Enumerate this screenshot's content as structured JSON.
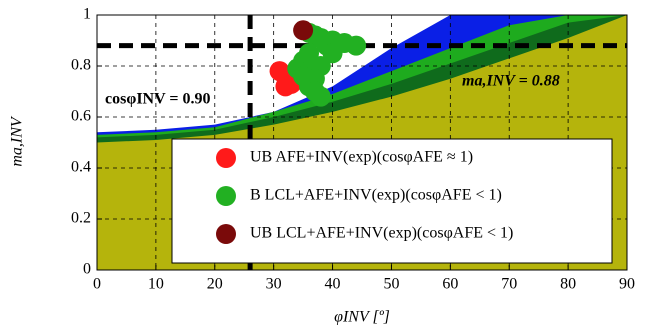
{
  "chart_data": {
    "type": "area",
    "x_label": "φINV [º]",
    "y_label": "ma,INV",
    "x": [
      0,
      10,
      20,
      30,
      40,
      50,
      60,
      70,
      80,
      90
    ],
    "areas": [
      {
        "color": "#0a1fe6",
        "values": [
          0.54,
          0.55,
          0.57,
          0.62,
          0.72,
          0.87,
          1.0,
          1.0,
          1.0,
          1.0
        ]
      },
      {
        "color": "#1eab1e",
        "values": [
          0.53,
          0.54,
          0.56,
          0.62,
          0.69,
          0.78,
          0.87,
          0.96,
          1.0,
          1.0
        ]
      },
      {
        "color": "#0f6b1c",
        "values": [
          0.52,
          0.53,
          0.55,
          0.6,
          0.66,
          0.73,
          0.81,
          0.89,
          0.97,
          1.0
        ]
      },
      {
        "color": "#b5b40c",
        "values": [
          0.5,
          0.51,
          0.53,
          0.57,
          0.62,
          0.68,
          0.75,
          0.83,
          0.91,
          1.0
        ]
      }
    ],
    "series": [
      {
        "name": "UB AFE+INV(exp)(cosφAFE ≈ 1)",
        "color": "#ff1a1a",
        "x": [
          31,
          32,
          33,
          32
        ],
        "y": [
          0.78,
          0.76,
          0.73,
          0.72
        ]
      },
      {
        "name": "B LCL+AFE+INV(exp)(cosφAFE < 1)",
        "color": "#22b022",
        "x": [
          36,
          37,
          38,
          40,
          42,
          44,
          39,
          36,
          35,
          34,
          36,
          38,
          37,
          36,
          37,
          38,
          35,
          40
        ],
        "y": [
          0.93,
          0.92,
          0.91,
          0.9,
          0.89,
          0.88,
          0.88,
          0.85,
          0.82,
          0.79,
          0.78,
          0.8,
          0.75,
          0.72,
          0.7,
          0.68,
          0.76,
          0.85
        ]
      },
      {
        "name": "UB LCL+AFE+INV(exp)(cosφAFE < 1)",
        "color": "#7a0a0a",
        "x": [
          35
        ],
        "y": [
          0.94
        ]
      }
    ],
    "hline": 0.88,
    "vline": 26,
    "annotations": [
      "cosφINV = 0.90",
      "ma,INV = 0.88"
    ],
    "xlim": [
      0,
      90
    ],
    "ylim": [
      0,
      1
    ],
    "xticks": [
      0,
      10,
      20,
      30,
      40,
      50,
      60,
      70,
      80,
      90
    ],
    "yticks": [
      0,
      0.2,
      0.4,
      0.6,
      0.8,
      1
    ],
    "grid": true
  }
}
